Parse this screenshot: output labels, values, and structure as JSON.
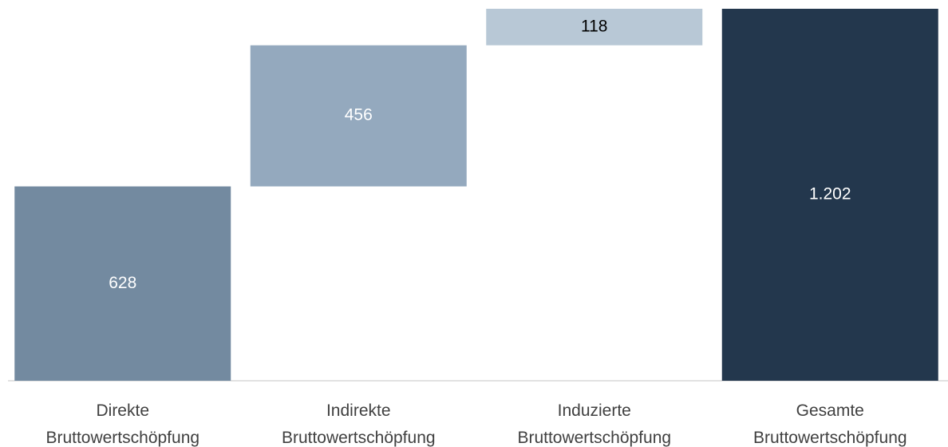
{
  "chart_data": {
    "type": "waterfall",
    "categories": [
      [
        "Direkte",
        "Bruttowertschöpfung"
      ],
      [
        "Indirekte",
        "Bruttowertschöpfung"
      ],
      [
        "Induzierte",
        "Bruttowertschöpfung"
      ],
      [
        "Gesamte",
        "Bruttowertschöpfung"
      ]
    ],
    "values": [
      628,
      456,
      118,
      1202
    ],
    "value_labels": [
      "628",
      "456",
      "118",
      "1.202"
    ],
    "totals": [
      false,
      false,
      false,
      true
    ],
    "colors": [
      "#738aa0",
      "#94a9be",
      "#b8c8d6",
      "#23374d"
    ],
    "label_colors": [
      "#ffffff",
      "#ffffff",
      "#000000",
      "#ffffff"
    ]
  }
}
